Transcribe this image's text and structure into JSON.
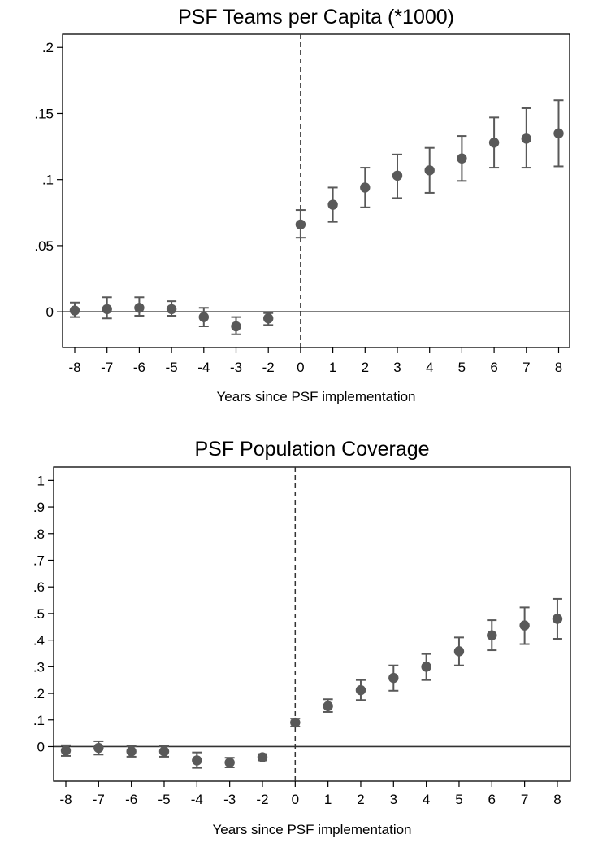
{
  "chart_data": [
    {
      "type": "scatter",
      "title": "PSF Teams per Capita (*1000)",
      "xlabel": "Years since PSF implementation",
      "ylabel": "",
      "x_ticks": [
        "-8",
        "-7",
        "-6",
        "-5",
        "-4",
        "-3",
        "-2",
        "0",
        "1",
        "2",
        "3",
        "4",
        "5",
        "6",
        "7",
        "8"
      ],
      "y_ticks": [
        {
          "value": 0,
          "label": "0"
        },
        {
          "value": 0.05,
          "label": ".05"
        },
        {
          "value": 0.1,
          "label": ".1"
        },
        {
          "value": 0.15,
          "label": ".15"
        },
        {
          "value": 0.2,
          "label": ".2"
        }
      ],
      "ylim": [
        -0.027,
        0.21
      ],
      "reference_line_y": 0,
      "reference_line_x": 0,
      "grid": false,
      "marker_color": "#595959",
      "points": [
        {
          "x": -8,
          "y": 0.001,
          "lo": -0.004,
          "hi": 0.007
        },
        {
          "x": -7,
          "y": 0.002,
          "lo": -0.005,
          "hi": 0.011
        },
        {
          "x": -6,
          "y": 0.003,
          "lo": -0.003,
          "hi": 0.011
        },
        {
          "x": -5,
          "y": 0.002,
          "lo": -0.003,
          "hi": 0.008
        },
        {
          "x": -4,
          "y": -0.004,
          "lo": -0.011,
          "hi": 0.003
        },
        {
          "x": -3,
          "y": -0.011,
          "lo": -0.017,
          "hi": -0.004
        },
        {
          "x": -2,
          "y": -0.005,
          "lo": -0.01,
          "hi": -0.001
        },
        {
          "x": 0,
          "y": 0.066,
          "lo": 0.056,
          "hi": 0.077
        },
        {
          "x": 1,
          "y": 0.081,
          "lo": 0.068,
          "hi": 0.094
        },
        {
          "x": 2,
          "y": 0.094,
          "lo": 0.079,
          "hi": 0.109
        },
        {
          "x": 3,
          "y": 0.103,
          "lo": 0.086,
          "hi": 0.119
        },
        {
          "x": 4,
          "y": 0.107,
          "lo": 0.09,
          "hi": 0.124
        },
        {
          "x": 5,
          "y": 0.116,
          "lo": 0.099,
          "hi": 0.133
        },
        {
          "x": 6,
          "y": 0.128,
          "lo": 0.109,
          "hi": 0.147
        },
        {
          "x": 7,
          "y": 0.131,
          "lo": 0.109,
          "hi": 0.154
        },
        {
          "x": 8,
          "y": 0.135,
          "lo": 0.11,
          "hi": 0.16
        }
      ]
    },
    {
      "type": "scatter",
      "title": "PSF Population Coverage",
      "xlabel": "Years since PSF implementation",
      "ylabel": "",
      "x_ticks": [
        "-8",
        "-7",
        "-6",
        "-5",
        "-4",
        "-3",
        "-2",
        "0",
        "1",
        "2",
        "3",
        "4",
        "5",
        "6",
        "7",
        "8"
      ],
      "y_ticks": [
        {
          "value": 0,
          "label": "0"
        },
        {
          "value": 0.1,
          "label": ".1"
        },
        {
          "value": 0.2,
          "label": ".2"
        },
        {
          "value": 0.3,
          "label": ".3"
        },
        {
          "value": 0.4,
          "label": ".4"
        },
        {
          "value": 0.5,
          "label": ".5"
        },
        {
          "value": 0.6,
          "label": ".6"
        },
        {
          "value": 0.7,
          "label": ".7"
        },
        {
          "value": 0.8,
          "label": ".8"
        },
        {
          "value": 0.9,
          "label": ".9"
        },
        {
          "value": 1,
          "label": "1"
        }
      ],
      "ylim": [
        -0.13,
        1.05
      ],
      "reference_line_y": 0,
      "reference_line_x": 0,
      "grid": false,
      "marker_color": "#595959",
      "points": [
        {
          "x": -8,
          "y": -0.015,
          "lo": -0.035,
          "hi": 0.005
        },
        {
          "x": -7,
          "y": -0.005,
          "lo": -0.03,
          "hi": 0.02
        },
        {
          "x": -6,
          "y": -0.018,
          "lo": -0.038,
          "hi": 0.002
        },
        {
          "x": -5,
          "y": -0.018,
          "lo": -0.038,
          "hi": 0.002
        },
        {
          "x": -4,
          "y": -0.052,
          "lo": -0.08,
          "hi": -0.022
        },
        {
          "x": -3,
          "y": -0.06,
          "lo": -0.078,
          "hi": -0.042
        },
        {
          "x": -2,
          "y": -0.04,
          "lo": -0.052,
          "hi": -0.028
        },
        {
          "x": 0,
          "y": 0.09,
          "lo": 0.075,
          "hi": 0.105
        },
        {
          "x": 1,
          "y": 0.152,
          "lo": 0.13,
          "hi": 0.178
        },
        {
          "x": 2,
          "y": 0.212,
          "lo": 0.175,
          "hi": 0.25
        },
        {
          "x": 3,
          "y": 0.258,
          "lo": 0.21,
          "hi": 0.305
        },
        {
          "x": 4,
          "y": 0.3,
          "lo": 0.25,
          "hi": 0.348
        },
        {
          "x": 5,
          "y": 0.358,
          "lo": 0.305,
          "hi": 0.41
        },
        {
          "x": 6,
          "y": 0.418,
          "lo": 0.362,
          "hi": 0.475
        },
        {
          "x": 7,
          "y": 0.455,
          "lo": 0.385,
          "hi": 0.523
        },
        {
          "x": 8,
          "y": 0.48,
          "lo": 0.405,
          "hi": 0.555
        }
      ]
    }
  ]
}
